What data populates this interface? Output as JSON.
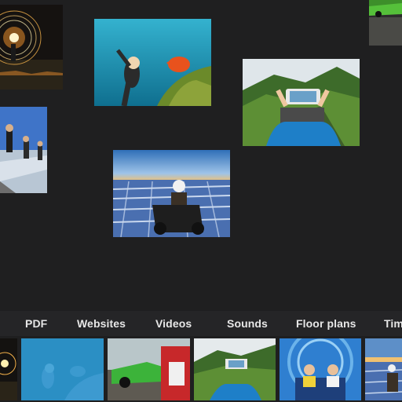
{
  "categories": [
    {
      "label": "PDF"
    },
    {
      "label": "Websites"
    },
    {
      "label": "Videos"
    },
    {
      "label": "Sounds"
    },
    {
      "label": "Floor plans"
    },
    {
      "label": "Tim"
    }
  ],
  "selected_thumbnail_color": "#2b8fc4",
  "background_color": "#1f1f20",
  "floating_photos": [
    {
      "name": "steel-wool-fire-photo"
    },
    {
      "name": "underwater-diver-photo"
    },
    {
      "name": "mountain-hiker-photo"
    },
    {
      "name": "skaters-photo"
    },
    {
      "name": "salt-flat-motorcycle-photo"
    },
    {
      "name": "green-race-car-photo"
    }
  ]
}
